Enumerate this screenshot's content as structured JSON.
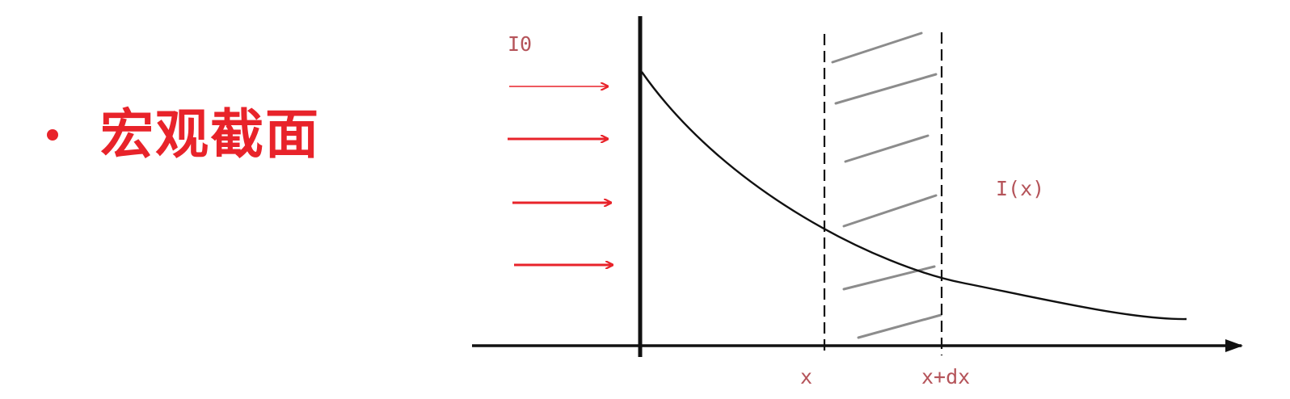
{
  "bullet": {
    "text": "宏观截面"
  },
  "labels": {
    "incident": "I0",
    "intensity": "I(x)",
    "x": "x",
    "x_plus_dx": "x+dx"
  },
  "colors": {
    "accent": "#e8232a",
    "label": "#b5545a",
    "ink": "#111111",
    "hatch": "#8c8c8c"
  }
}
